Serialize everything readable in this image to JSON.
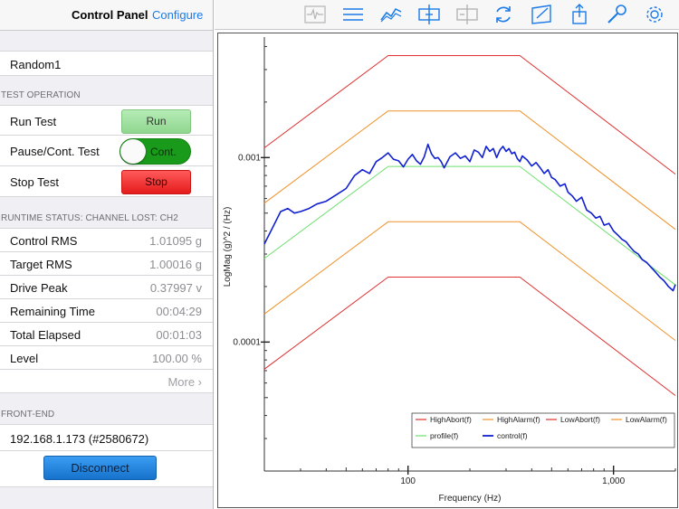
{
  "header": {
    "title": "Control Panel",
    "configure": "Configure"
  },
  "profile_name": "Random1",
  "test_operation": {
    "section": "TEST OPERATION",
    "run_label": "Run Test",
    "run_button": "Run",
    "pause_label": "Pause/Cont. Test",
    "pause_toggle": "Cont.",
    "stop_label": "Stop Test",
    "stop_button": "Stop"
  },
  "runtime": {
    "section": "RUNTIME STATUS: CHANNEL LOST: CH2",
    "rows": [
      {
        "label": "Control RMS",
        "value": "1.01095 g"
      },
      {
        "label": "Target RMS",
        "value": "1.00016 g"
      },
      {
        "label": "Drive Peak",
        "value": "0.37997 v"
      },
      {
        "label": "Remaining Time",
        "value": "00:04:29"
      },
      {
        "label": "Total Elapsed",
        "value": "00:01:03"
      },
      {
        "label": "Level",
        "value": "100.00 %"
      }
    ],
    "more": "More ›"
  },
  "front_end": {
    "section": "FRONT-END",
    "address": "192.168.1.173 (#2580672)",
    "disconnect": "Disconnect"
  },
  "toolbar_icons": [
    "waveform-icon",
    "list-icon",
    "trend-icon",
    "add-marker-icon",
    "remove-marker-icon",
    "refresh-icon",
    "notes-icon",
    "share-icon",
    "search-icon",
    "gear-icon"
  ],
  "colors": {
    "accent": "#1a7ae8",
    "abort": "#e03030",
    "alarm": "#f0922a",
    "profile": "#6ee06e",
    "control": "#1020d0"
  },
  "chart_data": {
    "type": "line",
    "xscale": "log",
    "yscale": "log",
    "xlabel": "Frequency (Hz)",
    "ylabel": "LogMag (g)^2 / (Hz)",
    "xlim": [
      20,
      2000
    ],
    "ylim": [
      2e-05,
      0.0045
    ],
    "xticks": [
      100,
      1000
    ],
    "xtick_labels": [
      "100",
      "1,000"
    ],
    "yticks": [
      0.0001,
      0.001
    ],
    "ytick_labels": [
      "0.0001",
      "0.001"
    ],
    "legend_position": "bottom-right",
    "series": [
      {
        "name": "HighAbort(f)",
        "color": "#e03030",
        "points": [
          [
            20,
            0.00113
          ],
          [
            80,
            0.00357
          ],
          [
            350,
            0.00357
          ],
          [
            2000,
            0.000813
          ]
        ]
      },
      {
        "name": "HighAlarm(f)",
        "color": "#f0922a",
        "points": [
          [
            20,
            0.000566
          ],
          [
            80,
            0.00179
          ],
          [
            350,
            0.00179
          ],
          [
            2000,
            0.000408
          ]
        ]
      },
      {
        "name": "LowAbort(f)",
        "color": "#e03030",
        "points": [
          [
            20,
            7.13e-05
          ],
          [
            80,
            0.000225
          ],
          [
            350,
            0.000225
          ],
          [
            2000,
            5.13e-05
          ]
        ]
      },
      {
        "name": "LowAlarm(f)",
        "color": "#f0922a",
        "points": [
          [
            20,
            0.000142
          ],
          [
            80,
            0.000449
          ],
          [
            350,
            0.000449
          ],
          [
            2000,
            0.000102
          ]
        ]
      },
      {
        "name": "profile(f)",
        "color": "#6ee06e",
        "points": [
          [
            20,
            0.000284
          ],
          [
            80,
            0.000895
          ],
          [
            350,
            0.000895
          ],
          [
            2000,
            0.000204
          ]
        ]
      },
      {
        "name": "control(f)",
        "color": "#1020d0",
        "points": [
          [
            20,
            0.00034
          ],
          [
            22,
            0.00042
          ],
          [
            24,
            0.00051
          ],
          [
            26,
            0.00053
          ],
          [
            28,
            0.0005
          ],
          [
            30,
            0.00051
          ],
          [
            33,
            0.00053
          ],
          [
            36,
            0.00056
          ],
          [
            40,
            0.00058
          ],
          [
            45,
            0.00063
          ],
          [
            50,
            0.00068
          ],
          [
            55,
            0.0008
          ],
          [
            60,
            0.00086
          ],
          [
            65,
            0.00082
          ],
          [
            70,
            0.00095
          ],
          [
            75,
            0.001
          ],
          [
            80,
            0.00106
          ],
          [
            85,
            0.00098
          ],
          [
            90,
            0.00096
          ],
          [
            95,
            0.00089
          ],
          [
            100,
            0.00098
          ],
          [
            105,
            0.00104
          ],
          [
            110,
            0.00096
          ],
          [
            115,
            0.00092
          ],
          [
            120,
            0.00101
          ],
          [
            125,
            0.00118
          ],
          [
            130,
            0.00105
          ],
          [
            135,
            0.00099
          ],
          [
            140,
            0.001
          ],
          [
            145,
            0.00095
          ],
          [
            150,
            0.00088
          ],
          [
            160,
            0.00101
          ],
          [
            170,
            0.00106
          ],
          [
            180,
            0.00099
          ],
          [
            190,
            0.00102
          ],
          [
            200,
            0.00095
          ],
          [
            210,
            0.0011
          ],
          [
            220,
            0.00107
          ],
          [
            230,
            0.001
          ],
          [
            240,
            0.00115
          ],
          [
            250,
            0.00108
          ],
          [
            260,
            0.00112
          ],
          [
            270,
            0.001
          ],
          [
            280,
            0.0011
          ],
          [
            290,
            0.00115
          ],
          [
            300,
            0.00108
          ],
          [
            310,
            0.00112
          ],
          [
            320,
            0.00105
          ],
          [
            330,
            0.00107
          ],
          [
            340,
            0.00099
          ],
          [
            350,
            0.00095
          ],
          [
            360,
            0.00102
          ],
          [
            380,
            0.00097
          ],
          [
            400,
            0.0009
          ],
          [
            420,
            0.00094
          ],
          [
            440,
            0.00088
          ],
          [
            460,
            0.00082
          ],
          [
            480,
            0.00086
          ],
          [
            500,
            0.00078
          ],
          [
            520,
            0.00076
          ],
          [
            550,
            0.0007
          ],
          [
            580,
            0.00072
          ],
          [
            600,
            0.00065
          ],
          [
            630,
            0.00062
          ],
          [
            660,
            0.00058
          ],
          [
            700,
            0.00061
          ],
          [
            740,
            0.00052
          ],
          [
            780,
            0.0005
          ],
          [
            820,
            0.00047
          ],
          [
            860,
            0.00048
          ],
          [
            900,
            0.00043
          ],
          [
            950,
            0.00044
          ],
          [
            1000,
            0.0004
          ],
          [
            1050,
            0.00038
          ],
          [
            1100,
            0.00036
          ],
          [
            1150,
            0.00035
          ],
          [
            1200,
            0.00033
          ],
          [
            1260,
            0.00031
          ],
          [
            1320,
            0.0003
          ],
          [
            1380,
            0.00028
          ],
          [
            1450,
            0.00027
          ],
          [
            1520,
            0.000255
          ],
          [
            1600,
            0.00024
          ],
          [
            1680,
            0.000225
          ],
          [
            1760,
            0.000215
          ],
          [
            1850,
            0.0002
          ],
          [
            1950,
            0.00019
          ],
          [
            2000,
            0.000205
          ]
        ]
      }
    ]
  }
}
